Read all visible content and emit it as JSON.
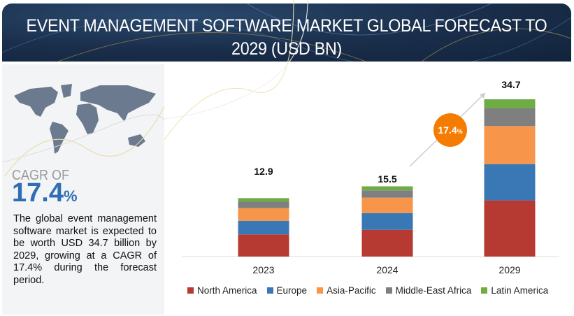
{
  "header": {
    "title": "EVENT MANAGEMENT SOFTWARE MARKET GLOBAL FORECAST TO 2029 (USD BN)"
  },
  "left_panel": {
    "cagr_label": "CAGR OF",
    "cagr_value": "17.4",
    "cagr_unit": "%",
    "description": "The global event management software market is expected to be worth USD 34.7 billion by 2029, growing at a CAGR of 17.4% during the forecast period."
  },
  "chart_data": {
    "type": "bar",
    "stacked": true,
    "title": "EVENT MANAGEMENT SOFTWARE MARKET GLOBAL FORECAST TO 2029 (USD BN)",
    "categories": [
      "2023",
      "2024",
      "2029"
    ],
    "totals": [
      "12.9",
      "15.5",
      "34.7"
    ],
    "series": [
      {
        "name": "North America",
        "color": "#b73a32",
        "values": [
          4.9,
          5.9,
          12.4
        ]
      },
      {
        "name": "Europe",
        "color": "#3a78b5",
        "values": [
          3.0,
          3.7,
          8.0
        ]
      },
      {
        "name": "Asia-Pacific",
        "color": "#f7964a",
        "values": [
          2.8,
          3.4,
          8.4
        ]
      },
      {
        "name": "Middle-East Africa",
        "color": "#7f7f7f",
        "values": [
          1.4,
          1.6,
          3.9
        ]
      },
      {
        "name": "Latin America",
        "color": "#6fac46",
        "values": [
          0.8,
          0.9,
          2.0
        ]
      }
    ],
    "ylim": [
      0,
      35
    ],
    "grid": false,
    "legend_position": "bottom",
    "annotation": {
      "value": "17.4",
      "unit": "%",
      "color": "#f57c00"
    }
  }
}
